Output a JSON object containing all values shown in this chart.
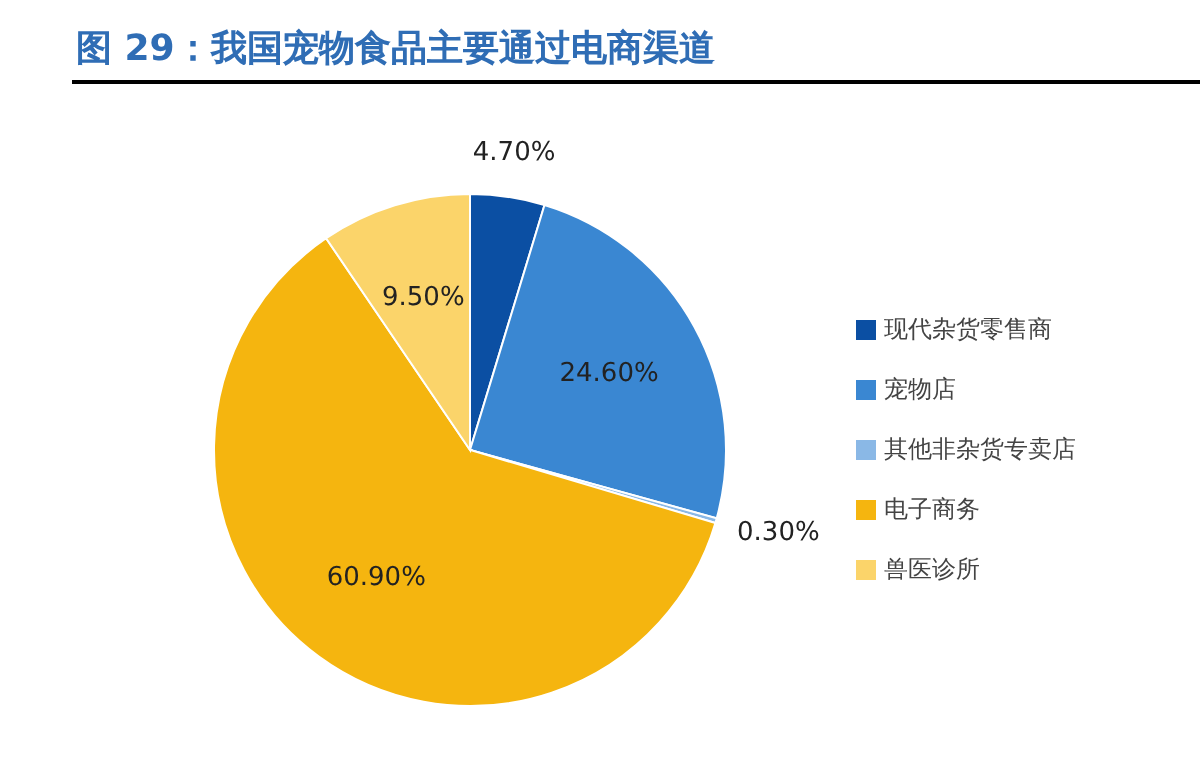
{
  "chart_data": {
    "type": "pie",
    "title": "图 29：我国宠物食品主要通过电商渠道",
    "categories": [
      "现代杂货零售商",
      "宠物店",
      "其他非杂货专卖店",
      "电子商务",
      "兽医诊所"
    ],
    "values": [
      4.7,
      24.6,
      0.3,
      60.9,
      9.5
    ],
    "value_labels": [
      "4.70%",
      "24.60%",
      "0.30%",
      "60.90%",
      "9.50%"
    ],
    "colors": [
      "#0b4fa3",
      "#3a87d2",
      "#8ab8e6",
      "#f5b50f",
      "#fbd46a"
    ],
    "legend": "right"
  }
}
